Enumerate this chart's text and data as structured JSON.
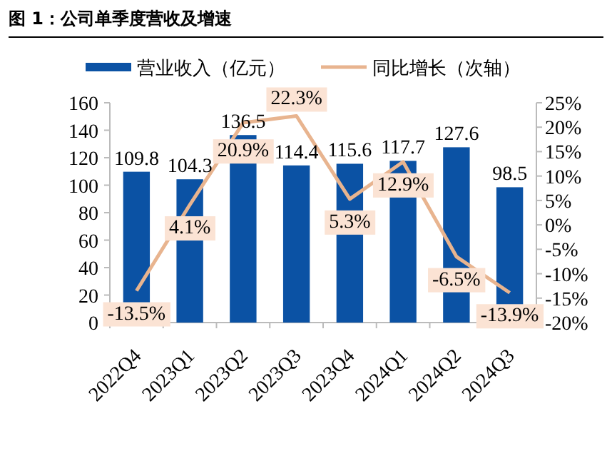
{
  "chart_data": {
    "type": "bar",
    "title": "图 1：公司单季度营收及增速",
    "categories": [
      "2022Q4",
      "2023Q1",
      "2023Q2",
      "2023Q3",
      "2023Q4",
      "2024Q1",
      "2024Q2",
      "2024Q3"
    ],
    "series": [
      {
        "name": "营业收入（亿元）",
        "color": "#0b52a4",
        "values": [
          109.8,
          104.3,
          136.5,
          114.4,
          115.6,
          117.7,
          127.6,
          98.5
        ],
        "value_labels": [
          "109.8",
          "104.3",
          "136.5",
          "114.4",
          "115.6",
          "117.7",
          "127.6",
          "98.5"
        ]
      },
      {
        "name": "同比增长（次轴）",
        "type": "line",
        "axis": "y2",
        "color": "#e8b48f",
        "values": [
          -13.5,
          4.1,
          20.9,
          22.3,
          5.3,
          12.9,
          -6.5,
          -13.9
        ],
        "value_labels": [
          "-13.5%",
          "4.1%",
          "20.9%",
          "22.3%",
          "5.3%",
          "12.9%",
          "-6.5%",
          "-13.9%"
        ]
      }
    ],
    "ylim": [
      0,
      160
    ],
    "yticks": [
      0,
      20,
      40,
      60,
      80,
      100,
      120,
      140,
      160
    ],
    "y2lim": [
      -20,
      25
    ],
    "y2ticks": [
      {
        "value": -20,
        "label": "-20%"
      },
      {
        "value": -15,
        "label": "-15%"
      },
      {
        "value": -10,
        "label": "-10%"
      },
      {
        "value": -5,
        "label": "-5%"
      },
      {
        "value": 0,
        "label": "0%"
      },
      {
        "value": 5,
        "label": "5%"
      },
      {
        "value": 10,
        "label": "10%"
      },
      {
        "value": 15,
        "label": "15%"
      },
      {
        "value": 20,
        "label": "20%"
      },
      {
        "value": 25,
        "label": "25%"
      }
    ],
    "legend": "top",
    "grid": false
  }
}
